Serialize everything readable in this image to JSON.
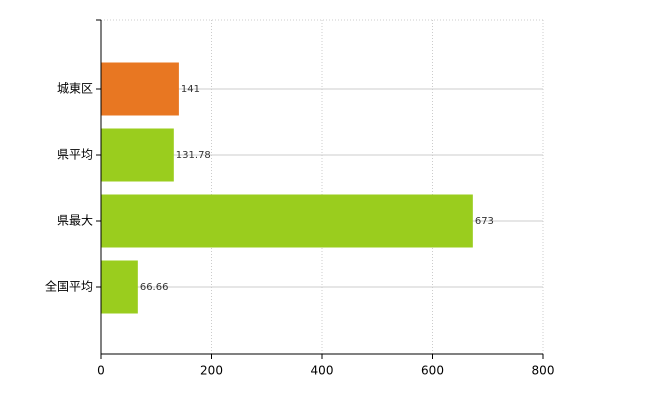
{
  "chart_data": {
    "type": "hbar",
    "categories": [
      "城東区",
      "県平均",
      "県最大",
      "全国平均"
    ],
    "values": [
      141,
      131.78,
      673,
      66.66
    ],
    "colors": [
      "#e87722",
      "#9acd1e",
      "#9acd1e",
      "#9acd1e"
    ],
    "xlim": [
      0,
      800
    ],
    "xticks": [
      0,
      200,
      400,
      600,
      800
    ],
    "grid": true
  }
}
